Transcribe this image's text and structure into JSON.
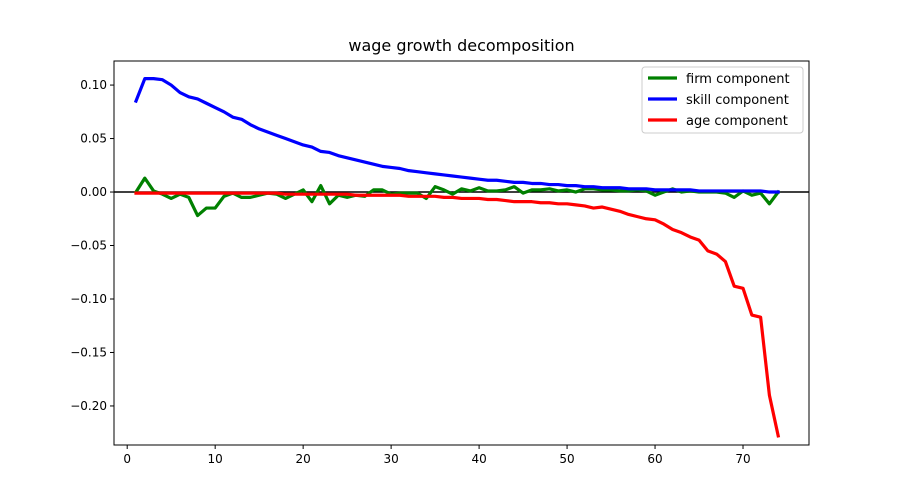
{
  "chart_data": {
    "type": "line",
    "title": "wage growth decomposition",
    "xlabel": "",
    "ylabel": "",
    "xlim": [
      -1.5,
      77.5
    ],
    "ylim": [
      -0.2365,
      0.1225
    ],
    "xticks": [
      0,
      10,
      20,
      30,
      40,
      50,
      60,
      70
    ],
    "yticks": [
      -0.2,
      -0.15,
      -0.1,
      -0.05,
      0.0,
      0.05,
      0.1
    ],
    "ytick_labels": [
      "−0.20",
      "−0.15",
      "−0.10",
      "−0.05",
      "0.00",
      "0.05",
      "0.10"
    ],
    "hline": 0,
    "legend_position": "upper right",
    "grid": false,
    "x": [
      1,
      2,
      3,
      4,
      5,
      6,
      7,
      8,
      9,
      10,
      11,
      12,
      13,
      14,
      15,
      16,
      17,
      18,
      19,
      20,
      21,
      22,
      23,
      24,
      25,
      26,
      27,
      28,
      29,
      30,
      31,
      32,
      33,
      34,
      35,
      36,
      37,
      38,
      39,
      40,
      41,
      42,
      43,
      44,
      45,
      46,
      47,
      48,
      49,
      50,
      51,
      52,
      53,
      54,
      55,
      56,
      57,
      58,
      59,
      60,
      61,
      62,
      63,
      64,
      65,
      66,
      67,
      68,
      69,
      70,
      71,
      72,
      73,
      74
    ],
    "series": [
      {
        "name": "firm component",
        "color": "#008000",
        "values": [
          0.0,
          0.013,
          0.001,
          -0.002,
          -0.006,
          -0.002,
          -0.005,
          -0.022,
          -0.015,
          -0.015,
          -0.004,
          -0.001,
          -0.005,
          -0.005,
          -0.003,
          -0.001,
          -0.002,
          -0.006,
          -0.002,
          0.002,
          -0.009,
          0.006,
          -0.011,
          -0.003,
          -0.005,
          -0.003,
          -0.004,
          0.002,
          0.002,
          -0.002,
          -0.001,
          -0.001,
          -0.001,
          -0.006,
          0.005,
          0.002,
          -0.002,
          0.003,
          0.001,
          0.004,
          0.001,
          0.001,
          0.002,
          0.005,
          -0.001,
          0.002,
          0.002,
          0.003,
          0.001,
          0.002,
          0.0,
          0.003,
          0.003,
          0.002,
          0.002,
          0.001,
          0.001,
          0.002,
          0.001,
          -0.003,
          0.0,
          0.003,
          0.0,
          0.001,
          0.0,
          0.0,
          0.0,
          -0.001,
          -0.005,
          0.001,
          -0.003,
          -0.001,
          -0.011,
          0.0
        ]
      },
      {
        "name": "skill component",
        "color": "#0000ff",
        "values": [
          0.085,
          0.106,
          0.106,
          0.105,
          0.1,
          0.093,
          0.089,
          0.087,
          0.083,
          0.079,
          0.075,
          0.07,
          0.068,
          0.063,
          0.059,
          0.056,
          0.053,
          0.05,
          0.047,
          0.044,
          0.042,
          0.038,
          0.037,
          0.034,
          0.032,
          0.03,
          0.028,
          0.026,
          0.024,
          0.023,
          0.022,
          0.02,
          0.019,
          0.018,
          0.017,
          0.016,
          0.015,
          0.014,
          0.013,
          0.012,
          0.011,
          0.011,
          0.01,
          0.009,
          0.009,
          0.008,
          0.008,
          0.007,
          0.007,
          0.006,
          0.006,
          0.005,
          0.005,
          0.004,
          0.004,
          0.004,
          0.003,
          0.003,
          0.003,
          0.002,
          0.002,
          0.002,
          0.002,
          0.002,
          0.001,
          0.001,
          0.001,
          0.001,
          0.001,
          0.001,
          0.001,
          0.001,
          0.0,
          0.0
        ]
      },
      {
        "name": "age component",
        "color": "#ff0000",
        "values": [
          -0.001,
          -0.001,
          -0.001,
          -0.001,
          -0.001,
          -0.001,
          -0.001,
          -0.001,
          -0.001,
          -0.001,
          -0.001,
          -0.001,
          -0.001,
          -0.001,
          -0.001,
          -0.001,
          -0.001,
          -0.002,
          -0.002,
          -0.002,
          -0.002,
          -0.002,
          -0.002,
          -0.002,
          -0.002,
          -0.003,
          -0.003,
          -0.003,
          -0.003,
          -0.003,
          -0.003,
          -0.004,
          -0.004,
          -0.004,
          -0.004,
          -0.005,
          -0.005,
          -0.006,
          -0.006,
          -0.006,
          -0.007,
          -0.007,
          -0.008,
          -0.009,
          -0.009,
          -0.009,
          -0.01,
          -0.01,
          -0.011,
          -0.011,
          -0.012,
          -0.013,
          -0.015,
          -0.014,
          -0.016,
          -0.018,
          -0.021,
          -0.023,
          -0.025,
          -0.026,
          -0.03,
          -0.035,
          -0.038,
          -0.042,
          -0.045,
          -0.055,
          -0.058,
          -0.065,
          -0.088,
          -0.09,
          -0.115,
          -0.117,
          -0.19,
          -0.228
        ]
      }
    ]
  }
}
